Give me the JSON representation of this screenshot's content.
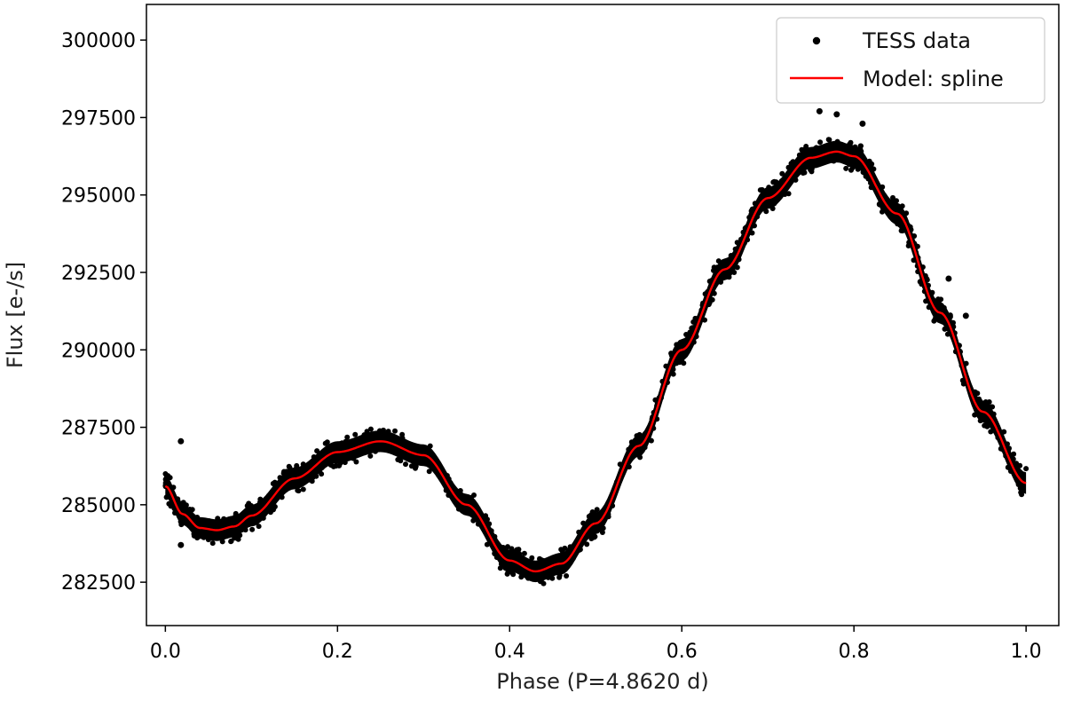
{
  "chart_data": {
    "type": "scatter",
    "title": "",
    "xlabel": "Phase (P=4.8620 d)",
    "ylabel": "Flux [e-/s]",
    "xlim": [
      -0.022,
      1.038
    ],
    "ylim": [
      281100,
      301150
    ],
    "xticks": [
      0.0,
      0.2,
      0.4,
      0.6,
      0.8,
      1.0
    ],
    "xtick_labels": [
      "0.0",
      "0.2",
      "0.4",
      "0.6",
      "0.8",
      "1.0"
    ],
    "yticks": [
      282500,
      285000,
      287500,
      290000,
      292500,
      295000,
      297500,
      300000
    ],
    "ytick_labels": [
      "282500",
      "285000",
      "287500",
      "290000",
      "292500",
      "295000",
      "297500",
      "300000"
    ],
    "grid": false,
    "legend_position": "upper right",
    "series": [
      {
        "name": "TESS data",
        "kind": "scatter",
        "color": "#000000",
        "note_band_halfwidth": 350,
        "outliers": [
          {
            "x": 0.018,
            "y": 287050
          },
          {
            "x": 0.018,
            "y": 283700
          },
          {
            "x": 0.76,
            "y": 297700
          },
          {
            "x": 0.78,
            "y": 297600
          },
          {
            "x": 0.81,
            "y": 297300
          },
          {
            "x": 0.83,
            "y": 294700
          },
          {
            "x": 0.91,
            "y": 292300
          },
          {
            "x": 0.93,
            "y": 291100
          }
        ]
      },
      {
        "name": "Model: spline",
        "kind": "line",
        "color": "#ff0000",
        "x": [
          0.0,
          0.02,
          0.04,
          0.06,
          0.08,
          0.1,
          0.15,
          0.2,
          0.25,
          0.3,
          0.35,
          0.4,
          0.43,
          0.46,
          0.5,
          0.55,
          0.6,
          0.65,
          0.7,
          0.75,
          0.78,
          0.8,
          0.85,
          0.9,
          0.95,
          1.0
        ],
        "y": [
          285600,
          284700,
          284250,
          284180,
          284300,
          284650,
          285850,
          286700,
          287050,
          286600,
          285000,
          283200,
          282850,
          283100,
          284400,
          286900,
          290000,
          292600,
          294900,
          296200,
          296400,
          296250,
          294400,
          291200,
          288000,
          285700
        ]
      }
    ]
  }
}
